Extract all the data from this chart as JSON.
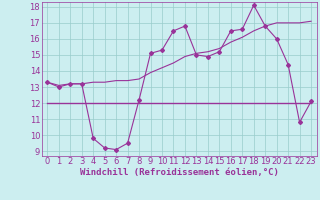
{
  "xlabel": "Windchill (Refroidissement éolien,°C)",
  "bg_color": "#cceef0",
  "grid_color": "#99cccc",
  "line_color": "#993399",
  "xlim": [
    -0.5,
    23.5
  ],
  "ylim": [
    8.7,
    18.3
  ],
  "yticks": [
    9,
    10,
    11,
    12,
    13,
    14,
    15,
    16,
    17,
    18
  ],
  "xticks": [
    0,
    1,
    2,
    3,
    4,
    5,
    6,
    7,
    8,
    9,
    10,
    11,
    12,
    13,
    14,
    15,
    16,
    17,
    18,
    19,
    20,
    21,
    22,
    23
  ],
  "line1_x": [
    0,
    1,
    2,
    3,
    4,
    5,
    6,
    7,
    8,
    9,
    10,
    11,
    12,
    13,
    14,
    15,
    16,
    17,
    18,
    19,
    20,
    21,
    22,
    23
  ],
  "line1_y": [
    13.3,
    13.0,
    13.2,
    13.2,
    9.8,
    9.2,
    9.1,
    9.5,
    12.2,
    15.1,
    15.3,
    16.5,
    16.8,
    15.0,
    14.9,
    15.2,
    16.5,
    16.6,
    18.1,
    16.8,
    16.0,
    14.4,
    10.8,
    12.1
  ],
  "line2_x": [
    0,
    1,
    2,
    3,
    4,
    5,
    6,
    7,
    8,
    9,
    10,
    11,
    12,
    13,
    14,
    15,
    16,
    17,
    18,
    19,
    20,
    21,
    22,
    23
  ],
  "line2_y": [
    13.3,
    13.1,
    13.2,
    13.2,
    13.3,
    13.3,
    13.4,
    13.4,
    13.5,
    13.9,
    14.2,
    14.5,
    14.9,
    15.1,
    15.2,
    15.4,
    15.8,
    16.1,
    16.5,
    16.8,
    17.0,
    17.0,
    17.0,
    17.1
  ],
  "line3_x": [
    0,
    3,
    10,
    19,
    22,
    23
  ],
  "line3_y": [
    12.0,
    12.0,
    12.0,
    12.0,
    12.0,
    12.0
  ],
  "xlabel_fontsize": 6.5,
  "tick_fontsize": 6.0
}
